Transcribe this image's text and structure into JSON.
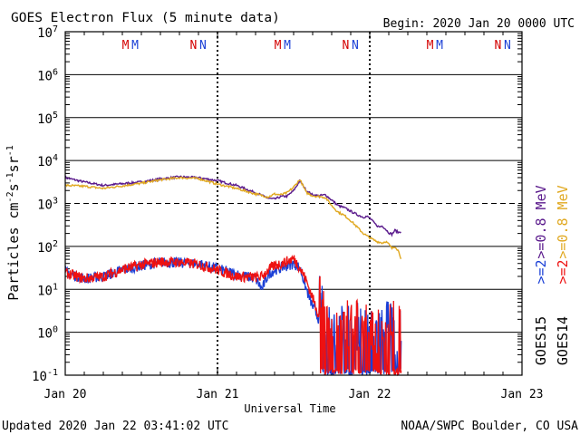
{
  "chart_data": {
    "type": "line",
    "title": "GOES Electron Flux (5 minute data)",
    "begin": "Begin: 2020 Jan 20 0000 UTC",
    "xlabel": "Universal Time",
    "ylabel": "Particles cm",
    "ylabel_units": [
      "-2",
      "s",
      "-1",
      "sr",
      "-1"
    ],
    "updated": "Updated 2020 Jan 22 03:41:02 UTC",
    "source": "NOAA/SWPC Boulder, CO USA",
    "x_ticks": [
      "Jan 20",
      "Jan 21",
      "Jan 22",
      "Jan 23"
    ],
    "xlim_hours": [
      0,
      72
    ],
    "ylim_log10": [
      -1,
      7
    ],
    "y_ticks": [
      {
        "base": "10",
        "exp": "7"
      },
      {
        "base": "10",
        "exp": "6"
      },
      {
        "base": "10",
        "exp": "5"
      },
      {
        "base": "10",
        "exp": "4"
      },
      {
        "base": "10",
        "exp": "3"
      },
      {
        "base": "10",
        "exp": "2"
      },
      {
        "base": "10",
        "exp": "1"
      },
      {
        "base": "10",
        "exp": "0"
      },
      {
        "base": "10",
        "exp": "-1"
      }
    ],
    "threshold_log10": 3,
    "markers": [
      {
        "label": "M",
        "hour": 9.5,
        "color": "#d40000"
      },
      {
        "label": "M",
        "hour": 11.0,
        "color": "#1a3fd6"
      },
      {
        "label": "N",
        "hour": 20.2,
        "color": "#d40000"
      },
      {
        "label": "N",
        "hour": 21.7,
        "color": "#1a3fd6"
      },
      {
        "label": "M",
        "hour": 33.5,
        "color": "#d40000"
      },
      {
        "label": "M",
        "hour": 35.0,
        "color": "#1a3fd6"
      },
      {
        "label": "N",
        "hour": 44.2,
        "color": "#d40000"
      },
      {
        "label": "N",
        "hour": 45.7,
        "color": "#1a3fd6"
      },
      {
        "label": "M",
        "hour": 57.5,
        "color": "#d40000"
      },
      {
        "label": "M",
        "hour": 59.0,
        "color": "#1a3fd6"
      },
      {
        "label": "N",
        "hour": 68.2,
        "color": "#d40000"
      },
      {
        "label": "N",
        "hour": 69.7,
        "color": "#1a3fd6"
      }
    ],
    "series": [
      {
        "name": "GOES15 >=0.8 MeV",
        "color": "#5a1a8c",
        "noisy": false,
        "x": [
          0,
          3,
          6,
          9,
          12,
          15,
          18,
          21,
          24,
          27,
          30,
          32,
          33,
          34,
          35,
          36,
          37,
          38,
          39,
          40,
          41,
          42,
          43,
          44,
          45,
          46,
          47,
          47.5,
          48,
          48.5,
          49,
          49.5,
          50,
          50.5,
          51,
          51.5,
          52,
          52.5,
          53
        ],
        "y": [
          3.6,
          3.5,
          3.42,
          3.46,
          3.5,
          3.57,
          3.62,
          3.6,
          3.53,
          3.42,
          3.25,
          3.12,
          3.1,
          3.16,
          3.17,
          3.3,
          3.53,
          3.3,
          3.2,
          3.18,
          3.2,
          3.08,
          2.95,
          2.9,
          2.82,
          2.74,
          2.68,
          2.7,
          2.66,
          2.58,
          2.5,
          2.45,
          2.48,
          2.4,
          2.32,
          2.28,
          2.38,
          2.32,
          2.36
        ]
      },
      {
        "name": "GOES14 >=0.8 MeV",
        "color": "#e0a820",
        "noisy": false,
        "x": [
          0,
          3,
          6,
          9,
          12,
          15,
          18,
          21,
          24,
          27,
          30,
          32,
          33,
          34,
          35,
          36,
          37,
          38,
          39,
          40,
          41,
          42,
          43,
          44,
          45,
          46,
          47,
          48,
          49,
          50,
          50.5,
          51,
          51.5,
          52,
          52.5,
          53
        ],
        "y": [
          3.42,
          3.4,
          3.35,
          3.41,
          3.47,
          3.55,
          3.6,
          3.58,
          3.45,
          3.35,
          3.22,
          3.15,
          3.22,
          3.2,
          3.25,
          3.38,
          3.56,
          3.25,
          3.18,
          3.16,
          3.14,
          2.95,
          2.8,
          2.72,
          2.6,
          2.45,
          2.3,
          2.2,
          2.12,
          2.08,
          2.12,
          2.05,
          1.95,
          2.0,
          1.9,
          1.7
        ]
      },
      {
        "name": "GOES15 >=2 MeV",
        "color": "#1a3fd6",
        "noisy": true,
        "x": [
          0,
          3,
          6,
          9,
          12,
          15,
          18,
          21,
          24,
          27,
          30,
          31,
          32,
          33,
          34,
          35,
          36,
          37,
          38,
          39,
          40,
          41,
          42,
          43,
          44,
          45,
          46,
          47,
          48,
          49,
          50,
          51,
          52,
          53
        ],
        "y": [
          1.4,
          1.25,
          1.3,
          1.45,
          1.55,
          1.63,
          1.62,
          1.6,
          1.48,
          1.35,
          1.25,
          1.0,
          1.35,
          1.45,
          1.5,
          1.55,
          1.6,
          1.5,
          1.0,
          0.6,
          0.3,
          -0.1,
          -0.4,
          -0.6,
          -0.5,
          -0.6,
          -0.5,
          -0.4,
          -0.6,
          -0.5,
          -0.5,
          -0.3,
          -0.6,
          -0.5
        ]
      },
      {
        "name": "GOES14 >=2 MeV",
        "color": "#ee1111",
        "noisy": true,
        "x": [
          0,
          3,
          6,
          9,
          12,
          15,
          18,
          21,
          24,
          27,
          30,
          31,
          32,
          33,
          34,
          35,
          36,
          37,
          38,
          39,
          40,
          41,
          42,
          43,
          44,
          45,
          46,
          47,
          48,
          49,
          50,
          51,
          52,
          53
        ],
        "y": [
          1.38,
          1.25,
          1.3,
          1.46,
          1.57,
          1.64,
          1.63,
          1.58,
          1.45,
          1.3,
          1.28,
          1.3,
          1.45,
          1.55,
          1.6,
          1.65,
          1.72,
          1.5,
          1.2,
          0.8,
          0.4,
          0.0,
          -0.3,
          -0.5,
          -0.4,
          -0.5,
          -0.4,
          -0.5,
          -0.4,
          -0.5,
          -0.4,
          -0.5,
          -0.4,
          -0.5
        ]
      }
    ],
    "legend": {
      "top": [
        {
          "text": ">=0.8 MeV",
          "color": "#5a1a8c"
        },
        {
          "text": ">=0.8 MeV",
          "color": "#e0a820"
        }
      ],
      "mid": [
        {
          "text": ">=2",
          "color": "#1a3fd6"
        },
        {
          "text": ">=2",
          "color": "#ee1111"
        }
      ],
      "bot": [
        {
          "text": "GOES15",
          "color": "#000000"
        },
        {
          "text": "GOES14",
          "color": "#000000"
        }
      ]
    }
  }
}
